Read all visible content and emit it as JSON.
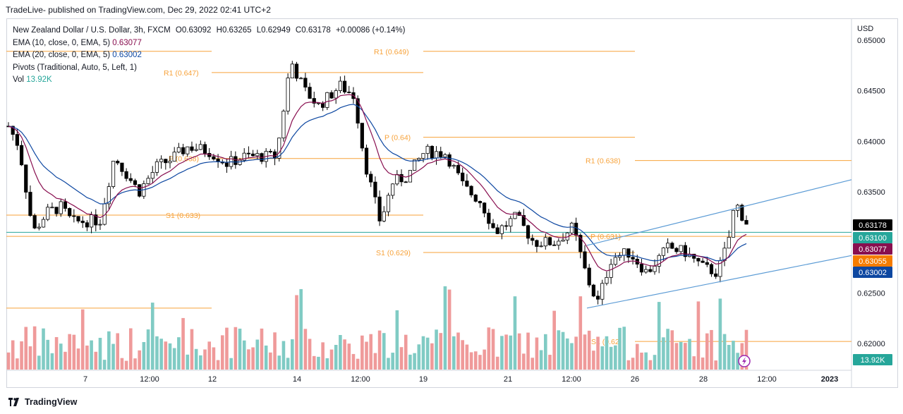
{
  "header": {
    "banner": "TradeLive- published on TradingView.com, Dec 29, 2022 02:41 UTC+2"
  },
  "legend": {
    "symbol": "New Zealand Dollar / U.S. Dollar, 3h, FXCM",
    "ohlc": {
      "o_label": "O",
      "o_val": "0.63092",
      "h_label": "H",
      "h_val": "0.63265",
      "l_label": "L",
      "l_val": "0.62949",
      "c_label": "C",
      "c_val": "0.63178",
      "change": "+0.00086 (+0.14%)"
    },
    "ema10_label": "EMA (10, close, 0, EMA, 5)",
    "ema10_val": "0.63077",
    "ema20_label": "EMA (20, close, 0, EMA, 5)",
    "ema20_val": "0.63002",
    "pivots_label": "Pivots (Traditional, Auto, 5, Left, 1)",
    "vol_label": "Vol",
    "vol_val": "13.92K"
  },
  "footer": {
    "brand": "TradingView"
  },
  "chart_data": {
    "type": "candlestick",
    "title": "New Zealand Dollar / U.S. Dollar, 3h, FXCM",
    "currency": "USD",
    "ylim": [
      0.6195,
      0.6522
    ],
    "y_ticks": [
      "0.65000",
      "0.64500",
      "0.64000",
      "0.63500",
      "0.63000",
      "0.62500",
      "0.62000"
    ],
    "x_ticks": [
      "7",
      "12:00",
      "12",
      "14",
      "12:00",
      "19",
      "21",
      "12:00",
      "26",
      "28",
      "12:00",
      "2023"
    ],
    "price_labels": [
      {
        "value": "0.63178",
        "bg": "#000000"
      },
      {
        "value": "0.63100",
        "bg": "#26a69a"
      },
      {
        "value": "0.63077",
        "bg": "#880e4f"
      },
      {
        "value": "0.63055",
        "bg": "#f57c00"
      },
      {
        "value": "0.63002",
        "bg": "#0d47a1"
      },
      {
        "value": "13.92K",
        "bg": "#26a69a"
      }
    ],
    "pivot_labels": [
      {
        "label": "R1 (0.649)",
        "value": 0.6489
      },
      {
        "label": "R1 (0.647)",
        "value": 0.6468
      },
      {
        "label": "P (0.64)",
        "value": 0.6404
      },
      {
        "label": "R1 (0.638)",
        "value": 0.6381
      },
      {
        "label": "P (0.638)",
        "value": 0.6383
      },
      {
        "label": "S1 (0.633)",
        "value": 0.6327
      },
      {
        "label": "P (0.631)",
        "value": 0.6306
      },
      {
        "label": "S1 (0.629)",
        "value": 0.629
      },
      {
        "label": "S1 (0.62)",
        "value": 0.6202
      }
    ],
    "colors": {
      "up": "#ffffff",
      "down": "#000000",
      "ema10": "#880e4f",
      "ema20": "#0d47a1",
      "pivot": "#f7a23a",
      "channel": "#5b9bd5",
      "hline_teal": "#26a69a",
      "vol_up": "#80cbc4",
      "vol_down": "#ef9a9a"
    }
  }
}
